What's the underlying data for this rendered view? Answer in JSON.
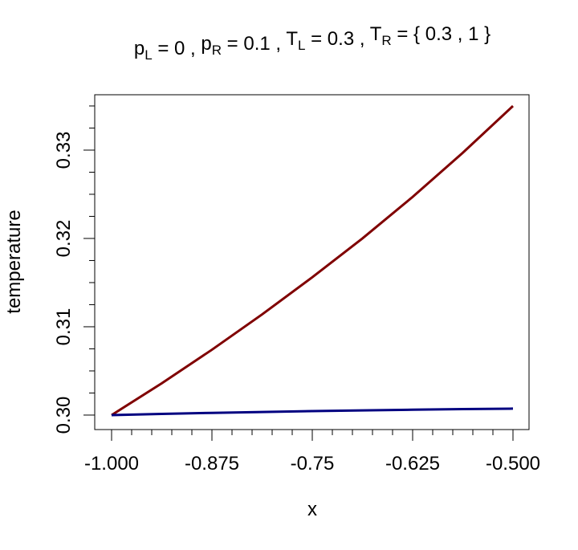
{
  "chart_data": {
    "type": "line",
    "title": [
      "p",
      "L",
      " = 0 ,   ",
      "p",
      "R",
      " = 0.1 ,   ",
      "T",
      "L",
      " = 0.3 ,   ",
      "T",
      "R",
      " =  { 0.3 , 1 }"
    ],
    "x_label": "x",
    "y_label": "temperature",
    "x": [
      -1,
      -0.9375,
      -0.875,
      -0.8125,
      -0.75,
      -0.6875,
      -0.625,
      -0.5625,
      -0.5
    ],
    "series": [
      {
        "color": "#800000",
        "values": [
          0.3,
          0.3036,
          0.3074,
          0.3114,
          0.3156,
          0.32,
          0.3247,
          0.3297,
          0.335
        ]
      },
      {
        "color": "#000080",
        "values": [
          0.3,
          0.30013,
          0.30025,
          0.30035,
          0.30045,
          0.30053,
          0.30061,
          0.30068,
          0.30073
        ]
      }
    ],
    "xlim": [
      -1.021,
      -0.48
    ],
    "ylim": [
      0.29836,
      0.33627
    ],
    "xticks": [
      {
        "value": -1,
        "label": "-1.000"
      },
      -0.875,
      -0.75,
      -0.625,
      {
        "value": -0.5,
        "label": "-0.500"
      }
    ],
    "xminorticks": [
      -0.975,
      -0.95,
      -0.925,
      -0.9,
      -0.85,
      -0.825,
      -0.8,
      -0.775,
      -0.725,
      -0.7,
      -0.675,
      -0.65,
      -0.6,
      -0.575,
      -0.55,
      -0.525
    ],
    "yticks": [
      {
        "value": 0.3,
        "label": "0.30"
      },
      {
        "value": 0.31,
        "label": "0.31"
      },
      {
        "value": 0.32,
        "label": "0.32"
      },
      {
        "value": 0.33,
        "label": "0.33"
      }
    ],
    "yminorticks": [
      0.3025,
      0.305,
      0.3075,
      0.3125,
      0.315,
      0.3175,
      0.3225,
      0.325,
      0.3275,
      0.3325,
      0.335
    ]
  }
}
